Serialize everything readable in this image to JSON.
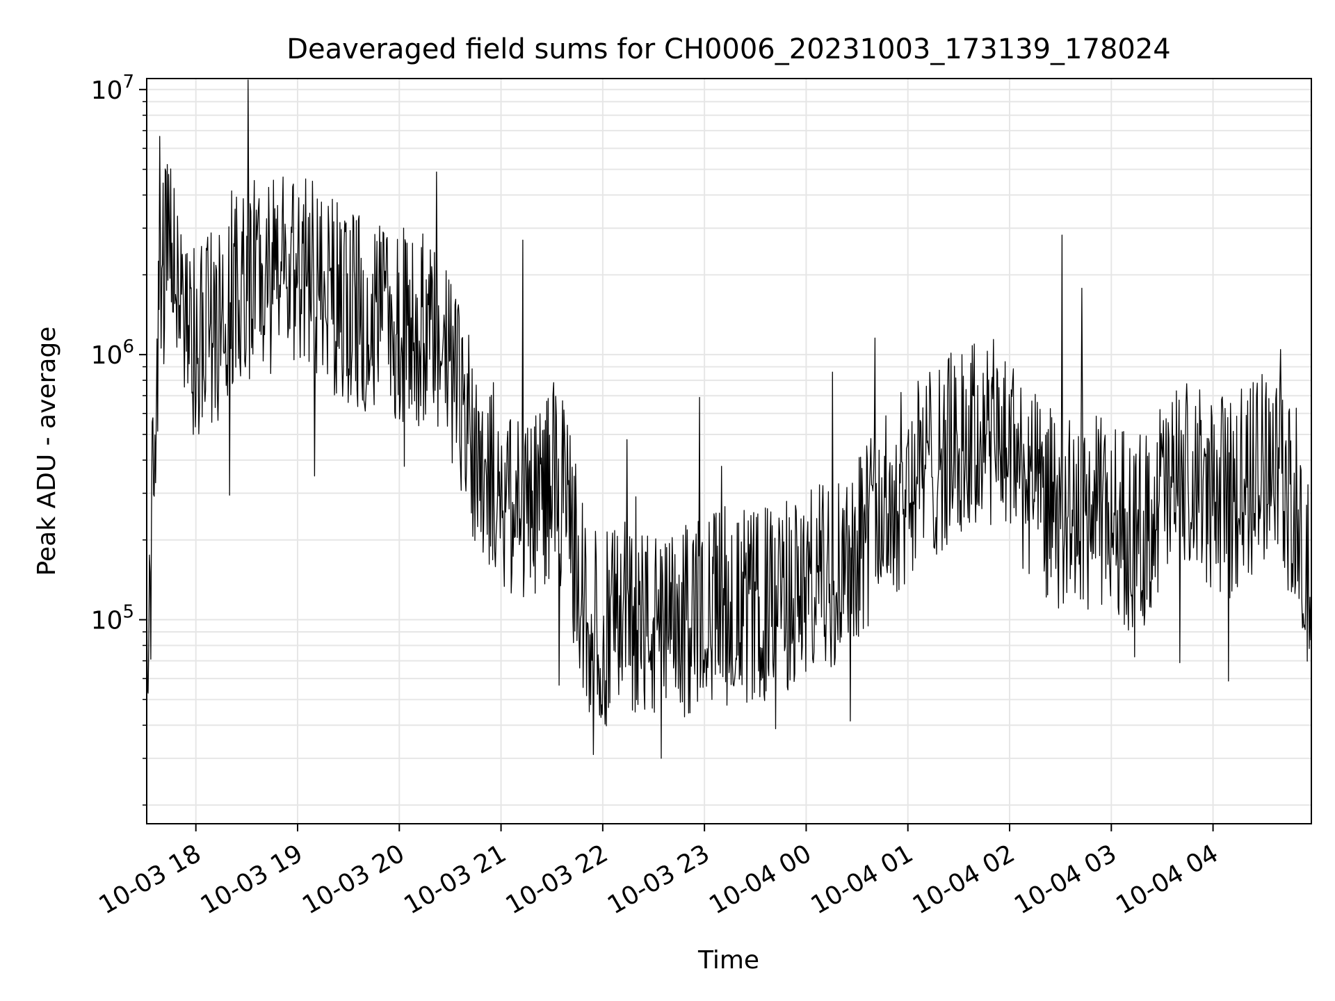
{
  "chart_data": {
    "type": "line",
    "title": "Deaveraged field sums for CH0006_20231003_173139_178024",
    "xlabel": "Time",
    "ylabel": "Peak ADU - average",
    "yscale": "log",
    "ylim": [
      17000,
      11000000
    ],
    "xlim": [
      "2023-10-03 17:31",
      "2023-10-04 04:58"
    ],
    "grid": true,
    "grid_minor_y": true,
    "line_color": "#000000",
    "grid_color": "#e6e6e6",
    "x_ticks": [
      {
        "t": "2023-10-03 18:00",
        "label": "10-03 18"
      },
      {
        "t": "2023-10-03 19:00",
        "label": "10-03 19"
      },
      {
        "t": "2023-10-03 20:00",
        "label": "10-03 20"
      },
      {
        "t": "2023-10-03 21:00",
        "label": "10-03 21"
      },
      {
        "t": "2023-10-03 22:00",
        "label": "10-03 22"
      },
      {
        "t": "2023-10-03 23:00",
        "label": "10-03 23"
      },
      {
        "t": "2023-10-04 00:00",
        "label": "10-04 00"
      },
      {
        "t": "2023-10-04 01:00",
        "label": "10-04 01"
      },
      {
        "t": "2023-10-04 02:00",
        "label": "10-04 02"
      },
      {
        "t": "2023-10-04 03:00",
        "label": "10-04 03"
      },
      {
        "t": "2023-10-04 04:00",
        "label": "10-04 04"
      }
    ],
    "y_ticks": [
      {
        "value": 100000,
        "base": "10",
        "exp": "5"
      },
      {
        "value": 1000000,
        "base": "10",
        "exp": "6"
      },
      {
        "value": 10000000,
        "base": "10",
        "exp": "7"
      }
    ],
    "series": [
      {
        "points": [
          [
            "2023-10-03 17:31",
            60000
          ],
          [
            "2023-10-03 17:33",
            120000
          ],
          [
            "2023-10-03 17:35",
            400000
          ],
          [
            "2023-10-03 17:37",
            900000
          ],
          [
            "2023-10-03 17:40",
            1800000
          ],
          [
            "2023-10-03 17:43",
            2400000
          ],
          [
            "2023-10-03 17:46",
            2600000
          ],
          [
            "2023-10-03 17:50",
            1600000
          ],
          [
            "2023-10-03 17:55",
            1200000
          ],
          [
            "2023-10-03 18:00",
            1100000
          ],
          [
            "2023-10-03 18:05",
            1200000
          ],
          [
            "2023-10-03 18:15",
            1300000
          ],
          [
            "2023-10-03 18:20",
            1800000
          ],
          [
            "2023-10-03 18:30",
            1900000
          ],
          [
            "2023-10-03 18:45",
            2000000
          ],
          [
            "2023-10-03 19:00",
            2100000
          ],
          [
            "2023-10-03 19:15",
            1800000
          ],
          [
            "2023-10-03 19:30",
            1500000
          ],
          [
            "2023-10-03 19:45",
            1400000
          ],
          [
            "2023-10-03 20:00",
            1300000
          ],
          [
            "2023-10-03 20:15",
            1200000
          ],
          [
            "2023-10-03 20:30",
            900000
          ],
          [
            "2023-10-03 20:45",
            450000
          ],
          [
            "2023-10-03 21:00",
            300000
          ],
          [
            "2023-10-03 21:15",
            250000
          ],
          [
            "2023-10-03 21:30",
            350000
          ],
          [
            "2023-10-03 21:40",
            250000
          ],
          [
            "2023-10-03 21:50",
            100000
          ],
          [
            "2023-10-03 22:00",
            90000
          ],
          [
            "2023-10-03 22:15",
            110000
          ],
          [
            "2023-10-03 22:30",
            90000
          ],
          [
            "2023-10-03 22:45",
            90000
          ],
          [
            "2023-10-03 23:00",
            120000
          ],
          [
            "2023-10-03 23:15",
            110000
          ],
          [
            "2023-10-03 23:30",
            110000
          ],
          [
            "2023-10-03 23:45",
            120000
          ],
          [
            "2023-10-04 00:00",
            130000
          ],
          [
            "2023-10-04 00:15",
            150000
          ],
          [
            "2023-10-04 00:30",
            200000
          ],
          [
            "2023-10-04 00:45",
            250000
          ],
          [
            "2023-10-04 01:00",
            330000
          ],
          [
            "2023-10-04 01:15",
            400000
          ],
          [
            "2023-10-04 01:30",
            450000
          ],
          [
            "2023-10-04 01:45",
            500000
          ],
          [
            "2023-10-04 02:00",
            450000
          ],
          [
            "2023-10-04 02:15",
            300000
          ],
          [
            "2023-10-04 02:30",
            250000
          ],
          [
            "2023-10-04 02:45",
            250000
          ],
          [
            "2023-10-04 03:00",
            250000
          ],
          [
            "2023-10-04 03:15",
            200000
          ],
          [
            "2023-10-04 03:30",
            300000
          ],
          [
            "2023-10-04 03:45",
            330000
          ],
          [
            "2023-10-04 04:00",
            300000
          ],
          [
            "2023-10-04 04:15",
            280000
          ],
          [
            "2023-10-04 04:30",
            400000
          ],
          [
            "2023-10-04 04:40",
            450000
          ],
          [
            "2023-10-04 04:48",
            200000
          ],
          [
            "2023-10-04 04:58",
            130000
          ]
        ]
      }
    ]
  }
}
